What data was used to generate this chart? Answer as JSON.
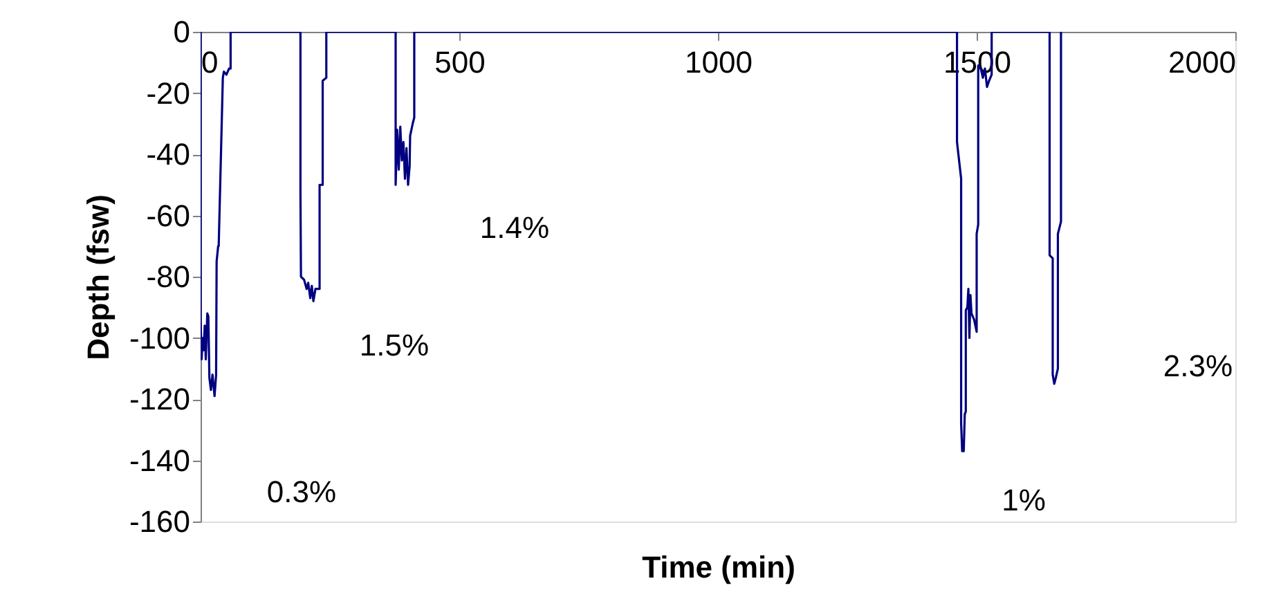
{
  "chart_data": {
    "type": "line",
    "xlabel": "Time (min)",
    "ylabel": "Depth (fsw)",
    "xlim": [
      0,
      2000
    ],
    "xticks": [
      0,
      500,
      1000,
      1500,
      2000
    ],
    "ylim": [
      -160,
      0
    ],
    "yticks": [
      0,
      -20,
      -40,
      -60,
      -80,
      -100,
      -120,
      -140,
      -160
    ],
    "grid": false,
    "marker": "none",
    "line_style": "solid",
    "series": [
      {
        "color": "#000080",
        "x": [
          0,
          0,
          2,
          4,
          6,
          8,
          10,
          13,
          15,
          17,
          20,
          23,
          27,
          30,
          31,
          34,
          35,
          43,
          45,
          50,
          55,
          58,
          58,
          193,
          193,
          194,
          200,
          205,
          208,
          212,
          215,
          218,
          222,
          230,
          230,
          236,
          236,
          243,
          243,
          377,
          377,
          380,
          383,
          386,
          389,
          392,
          395,
          398,
          401,
          404,
          405,
          410,
          413,
          413,
          1462,
          1462,
          1470,
          1470,
          1472,
          1475,
          1477,
          1479,
          1479,
          1482,
          1484,
          1486,
          1488,
          1490,
          1495,
          1500,
          1500,
          1503,
          1503,
          1508,
          1512,
          1516,
          1520,
          1524,
          1529,
          1529,
          1641,
          1641,
          1647,
          1647,
          1650,
          1653,
          1657,
          1657,
          1663,
          1663
        ],
        "values": [
          0,
          -94,
          -107,
          -100,
          -104,
          -96,
          -107,
          -92,
          -93,
          -113,
          -117,
          -112,
          -119,
          -112,
          -75,
          -70,
          -70,
          -15,
          -13,
          -14,
          -12,
          -12,
          0,
          0,
          -52,
          -80,
          -81,
          -84,
          -82,
          -87,
          -83,
          -88,
          -84,
          -84,
          -50,
          -50,
          -16,
          -15,
          0,
          0,
          -50,
          -32,
          -45,
          -31,
          -42,
          -36,
          -48,
          -38,
          -50,
          -44,
          -34,
          -30,
          -28,
          0,
          0,
          -36,
          -48,
          -128,
          -137,
          -137,
          -125,
          -124,
          -91,
          -90,
          -84,
          -100,
          -86,
          -92,
          -94,
          -98,
          -66,
          -63,
          -11,
          -12,
          -15,
          -12,
          -18,
          -16,
          -14,
          0,
          0,
          -73,
          -74,
          -112,
          -115,
          -113,
          -110,
          -66,
          -62,
          0
        ]
      }
    ],
    "annotations": [
      "0.3%",
      "1.5%",
      "1.4%",
      "1%",
      "2.3%"
    ]
  }
}
